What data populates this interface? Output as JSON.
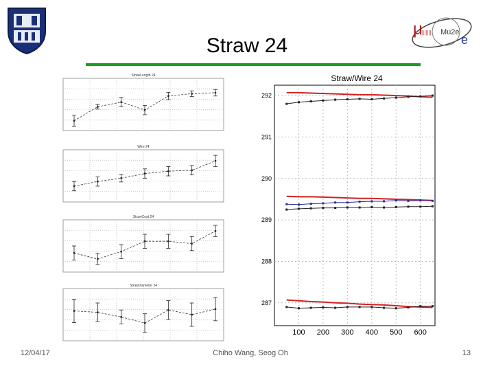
{
  "slide": {
    "title": "Straw 24",
    "footer_date": "12/04/17",
    "footer_author": "Chiho Wang, Seog Oh",
    "footer_page": "13",
    "accent_color": "#1e9a26"
  },
  "logos": {
    "left": "duke-shield",
    "right": "mu2e-logo",
    "right_text": "Mu2e"
  },
  "chart_data": [
    {
      "type": "line",
      "title": "Straw/Wire 24",
      "x": [
        50,
        100,
        150,
        200,
        250,
        300,
        350,
        400,
        450,
        500,
        550,
        600,
        650
      ],
      "xticks": [
        100,
        200,
        300,
        400,
        500,
        600
      ],
      "yticks": [
        287,
        288,
        289,
        290,
        291,
        292
      ],
      "xlim": [
        0,
        660
      ],
      "ylim": [
        286.45,
        292.25
      ],
      "grid": true,
      "series": [
        {
          "color": "#d42020",
          "width": 2,
          "marker": false,
          "values": [
            292.07,
            292.07,
            292.06,
            292.05,
            292.04,
            292.03,
            292.02,
            292.02,
            292.01,
            292.0,
            291.99,
            291.97,
            291.96
          ]
        },
        {
          "color": "#222222",
          "width": 1,
          "marker": true,
          "values": [
            291.8,
            291.84,
            291.86,
            291.88,
            291.9,
            291.91,
            291.92,
            291.91,
            291.93,
            291.95,
            291.97,
            291.98,
            292.0
          ]
        },
        {
          "color": "#d42020",
          "width": 2,
          "marker": false,
          "values": [
            289.57,
            289.56,
            289.56,
            289.55,
            289.54,
            289.53,
            289.52,
            289.52,
            289.51,
            289.5,
            289.49,
            289.48,
            289.47
          ]
        },
        {
          "color": "#2a2aa0",
          "width": 1,
          "marker": true,
          "values": [
            289.38,
            289.37,
            289.39,
            289.4,
            289.42,
            289.42,
            289.44,
            289.45,
            289.45,
            289.47,
            289.46,
            289.47,
            289.46
          ]
        },
        {
          "color": "#222222",
          "width": 1,
          "marker": true,
          "values": [
            289.25,
            289.27,
            289.28,
            289.29,
            289.29,
            289.3,
            289.3,
            289.31,
            289.3,
            289.31,
            289.32,
            289.32,
            289.33
          ]
        },
        {
          "color": "#d42020",
          "width": 2,
          "marker": false,
          "values": [
            287.07,
            287.05,
            287.03,
            287.02,
            287.0,
            286.99,
            286.97,
            286.96,
            286.95,
            286.93,
            286.91,
            286.9,
            286.89
          ]
        },
        {
          "color": "#222222",
          "width": 1,
          "marker": true,
          "values": [
            286.9,
            286.87,
            286.88,
            286.89,
            286.88,
            286.9,
            286.9,
            286.9,
            286.88,
            286.87,
            286.89,
            286.92,
            286.92
          ]
        }
      ]
    },
    {
      "type": "line",
      "title": "StrawLength 24",
      "x": [
        0,
        1,
        2,
        3,
        4,
        5,
        6
      ],
      "values": [
        0.15,
        0.45,
        0.55,
        0.38,
        0.68,
        0.73,
        0.75
      ],
      "errors": [
        0.12,
        0.05,
        0.1,
        0.1,
        0.08,
        0.06,
        0.07
      ],
      "ylim": [
        0,
        1
      ]
    },
    {
      "type": "line",
      "title": "Wire 24",
      "x": [
        0,
        1,
        2,
        3,
        4,
        5,
        6
      ],
      "values": [
        0.28,
        0.38,
        0.45,
        0.55,
        0.6,
        0.62,
        0.82
      ],
      "errors": [
        0.1,
        0.1,
        0.08,
        0.1,
        0.1,
        0.1,
        0.12
      ],
      "ylim": [
        0,
        1
      ]
    },
    {
      "type": "line",
      "title": "StrawCoat 24",
      "x": [
        0,
        1,
        2,
        3,
        4,
        5,
        6
      ],
      "values": [
        0.35,
        0.22,
        0.38,
        0.6,
        0.6,
        0.55,
        0.82
      ],
      "errors": [
        0.15,
        0.12,
        0.15,
        0.15,
        0.15,
        0.15,
        0.12
      ],
      "ylim": [
        0,
        1
      ]
    },
    {
      "type": "line",
      "title": "StrawDiameter 24",
      "x": [
        0,
        1,
        2,
        3,
        4,
        5,
        6
      ],
      "values": [
        0.58,
        0.55,
        0.45,
        0.32,
        0.6,
        0.5,
        0.62
      ],
      "errors": [
        0.25,
        0.2,
        0.15,
        0.2,
        0.2,
        0.25,
        0.25
      ],
      "ylim": [
        0,
        1
      ]
    }
  ]
}
